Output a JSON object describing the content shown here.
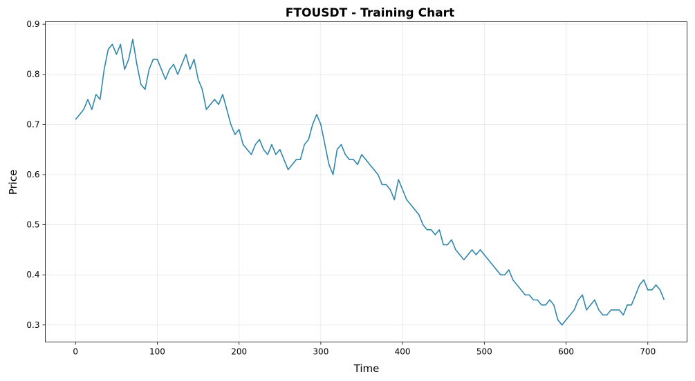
{
  "chart_data": {
    "type": "line",
    "title": "FTOUSDT - Training Chart",
    "xlabel": "Time",
    "ylabel": "Price",
    "xlim": [
      -37,
      748
    ],
    "ylim": [
      0.266,
      0.905
    ],
    "xticks": [
      0,
      100,
      200,
      300,
      400,
      500,
      600,
      700
    ],
    "yticks": [
      0.3,
      0.4,
      0.5,
      0.6,
      0.7,
      0.8,
      0.9
    ],
    "ytick_labels": [
      "0.3",
      "0.4",
      "0.5",
      "0.6",
      "0.7",
      "0.8",
      "0.9"
    ],
    "grid": true,
    "line_color": "#2e86ab",
    "series": [
      {
        "x": [
          0,
          5,
          10,
          15,
          20,
          25,
          30,
          35,
          40,
          45,
          50,
          55,
          60,
          65,
          70,
          75,
          80,
          85,
          90,
          95,
          100,
          105,
          110,
          115,
          120,
          125,
          130,
          135,
          140,
          145,
          150,
          155,
          160,
          165,
          170,
          175,
          180,
          185,
          190,
          195,
          200,
          205,
          210,
          215,
          220,
          225,
          230,
          235,
          240,
          245,
          250,
          255,
          260,
          265,
          270,
          275,
          280,
          285,
          290,
          295,
          300,
          305,
          310,
          315,
          320,
          325,
          330,
          335,
          340,
          345,
          350,
          355,
          360,
          365,
          370,
          375,
          380,
          385,
          390,
          395,
          400,
          405,
          410,
          415,
          420,
          425,
          430,
          435,
          440,
          445,
          450,
          455,
          460,
          465,
          470,
          475,
          480,
          485,
          490,
          495,
          500,
          505,
          510,
          515,
          520,
          525,
          530,
          535,
          540,
          545,
          550,
          555,
          560,
          565,
          570,
          575,
          580,
          585,
          590,
          595,
          600,
          605,
          610,
          615,
          620,
          625,
          630,
          635,
          640,
          645,
          650,
          655,
          660,
          665,
          670,
          675,
          680,
          685,
          690,
          695,
          700,
          705,
          710,
          715,
          720
        ],
        "y": [
          0.71,
          0.72,
          0.73,
          0.75,
          0.73,
          0.76,
          0.75,
          0.81,
          0.85,
          0.86,
          0.84,
          0.86,
          0.81,
          0.83,
          0.87,
          0.82,
          0.78,
          0.77,
          0.81,
          0.83,
          0.83,
          0.81,
          0.79,
          0.81,
          0.82,
          0.8,
          0.82,
          0.84,
          0.81,
          0.83,
          0.79,
          0.77,
          0.73,
          0.74,
          0.75,
          0.74,
          0.76,
          0.73,
          0.7,
          0.68,
          0.69,
          0.66,
          0.65,
          0.64,
          0.66,
          0.67,
          0.65,
          0.64,
          0.66,
          0.64,
          0.65,
          0.63,
          0.61,
          0.62,
          0.63,
          0.63,
          0.66,
          0.67,
          0.7,
          0.72,
          0.7,
          0.66,
          0.62,
          0.6,
          0.65,
          0.66,
          0.64,
          0.63,
          0.63,
          0.62,
          0.64,
          0.63,
          0.62,
          0.61,
          0.6,
          0.58,
          0.58,
          0.57,
          0.55,
          0.59,
          0.57,
          0.55,
          0.54,
          0.53,
          0.52,
          0.5,
          0.49,
          0.49,
          0.48,
          0.49,
          0.46,
          0.46,
          0.47,
          0.45,
          0.44,
          0.43,
          0.44,
          0.45,
          0.44,
          0.45,
          0.44,
          0.43,
          0.42,
          0.41,
          0.4,
          0.4,
          0.41,
          0.39,
          0.38,
          0.37,
          0.36,
          0.36,
          0.35,
          0.35,
          0.34,
          0.34,
          0.35,
          0.34,
          0.31,
          0.3,
          0.31,
          0.32,
          0.33,
          0.35,
          0.36,
          0.33,
          0.34,
          0.35,
          0.33,
          0.32,
          0.32,
          0.33,
          0.33,
          0.33,
          0.32,
          0.34,
          0.34,
          0.36,
          0.38,
          0.39,
          0.37,
          0.37,
          0.38,
          0.37,
          0.35
        ]
      }
    ]
  }
}
